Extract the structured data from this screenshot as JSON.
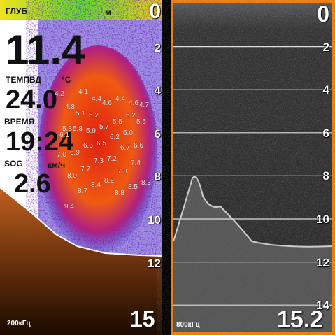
{
  "left_panel": {
    "depth_label": "ГЛУБ",
    "depth_unit": "м",
    "depth": "11.4",
    "temp_label": "ТЕМПВД",
    "temp_unit": "°C",
    "temp": "24.0",
    "time_label": "ВРЕМЯ",
    "time": "19:24",
    "speed_label": "SOG",
    "speed_unit": "км/ч",
    "speed": "2.6",
    "frequency": "200кГц",
    "range": "15",
    "scale": [
      0,
      2,
      4,
      6,
      8,
      10,
      12
    ],
    "fish_depths": [
      "4.2",
      "4.4",
      "4.6",
      "4.1",
      "4.4",
      "4.8",
      "4.6",
      "4.7",
      "5.2",
      "5.2",
      "5.1",
      "5.5",
      "5.8",
      "5.7",
      "5.5",
      "5.9",
      "6.0",
      "5.8",
      "6.2",
      "6.1",
      "6.5",
      "6.6",
      "6.6",
      "6.7",
      "6.9",
      "7.2",
      "7.0",
      "7.3",
      "7.4",
      "7.7",
      "7.8",
      "8.0",
      "8.2",
      "8.3",
      "8.4",
      "8.5",
      "8.7",
      "8.8",
      "9.4"
    ]
  },
  "right_panel": {
    "scale": [
      0,
      2,
      4,
      6,
      8,
      10,
      12,
      14
    ],
    "frequency": "800кГц",
    "range": "15.2"
  }
}
